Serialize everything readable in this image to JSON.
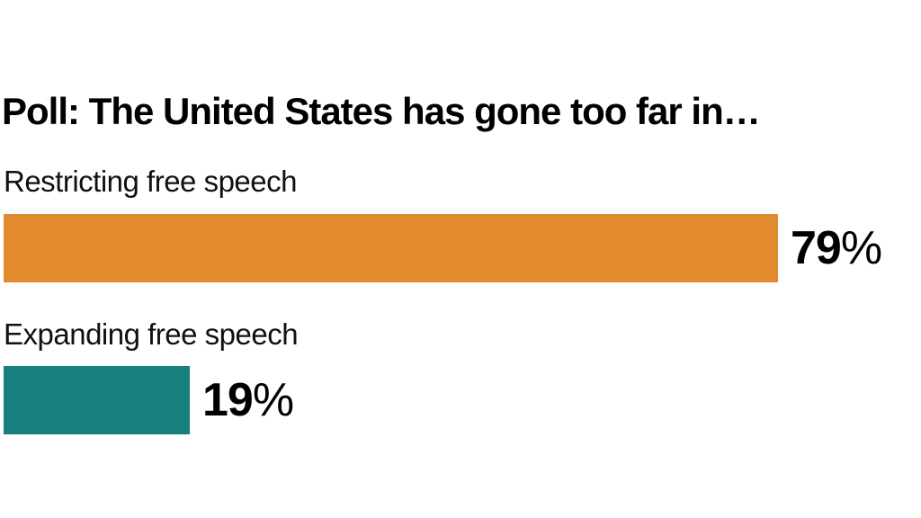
{
  "page": {
    "background_color": "#ffffff"
  },
  "chart_data": {
    "type": "bar",
    "orientation": "horizontal",
    "title": "Poll: The United States has gone too far in…",
    "categories": [
      "Restricting free speech",
      "Expanding free speech"
    ],
    "values": [
      79,
      19
    ],
    "value_suffix": "%",
    "value_labels": [
      "79%",
      "19%"
    ],
    "colors": [
      "#E18A2E",
      "#17807E"
    ],
    "xlim": [
      0,
      100
    ],
    "grid": false,
    "legend": false,
    "axes_shown": false,
    "text_color": "#000000"
  }
}
